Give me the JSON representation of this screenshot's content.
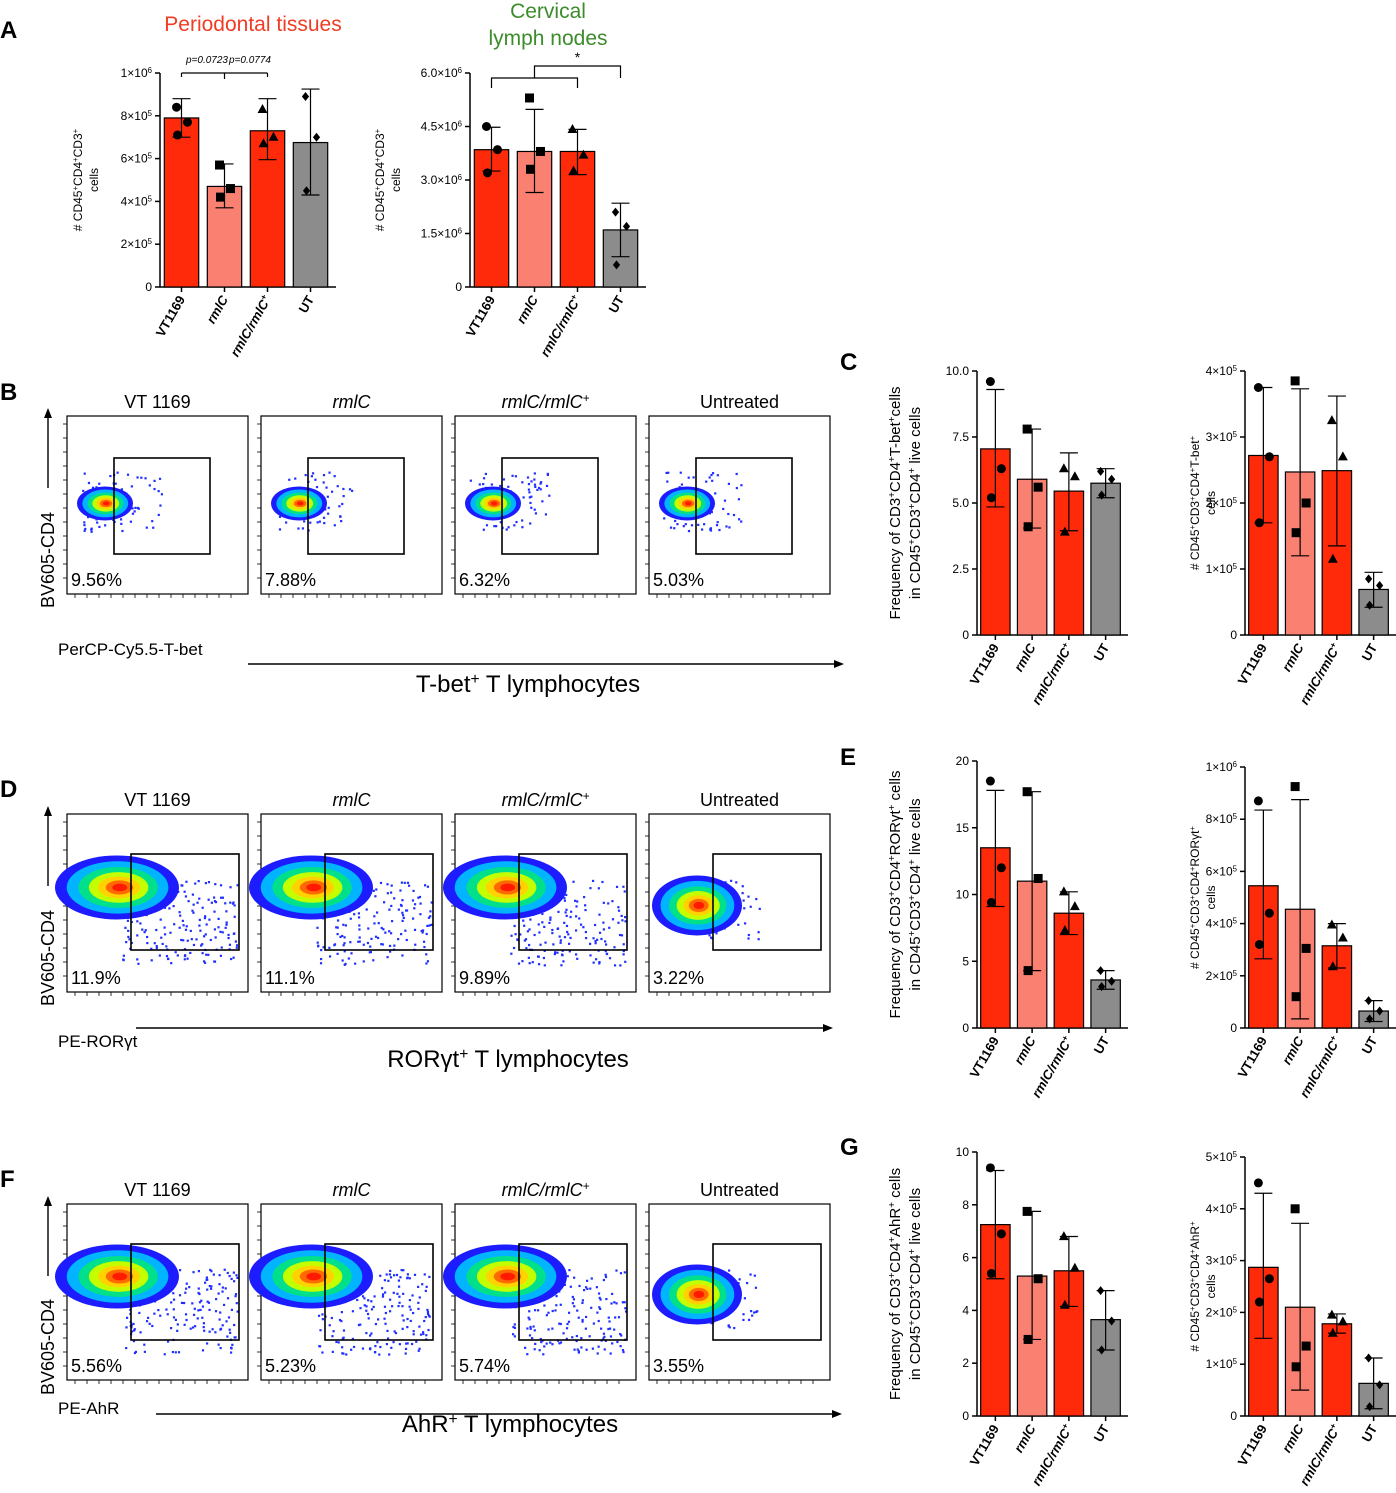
{
  "colors": {
    "red": "#ff2a0a",
    "pink": "#fa8072",
    "gray": "#8c8c8c",
    "blue": "#1f2fff",
    "title_red": "#f03c24",
    "title_green": "#3c8c2c"
  },
  "flow_groups": [
    "VT 1169",
    "rmlC",
    "rmlC/rmlC",
    "Untreated"
  ],
  "chart_data": [
    {
      "id": "A1",
      "panel": "A",
      "type": "bar",
      "title": "Periodontal tissues",
      "title_color": "#f03c24",
      "ylabel": [
        "# CD45",
        "+",
        "CD4",
        "+",
        "CD3",
        "+"
      ],
      "ylabel2": "cells",
      "ylim": [
        0,
        1000000
      ],
      "ticks": [
        "0",
        "2×10",
        "4×10",
        "6×10",
        "8×10",
        "1×10"
      ],
      "tick_exp": [
        "",
        "5",
        "5",
        "5",
        "5",
        "6"
      ],
      "categories": [
        "VT1169",
        "rmlC",
        "rmlC/rmlC",
        "UT"
      ],
      "values": [
        790000,
        470000,
        730000,
        675000
      ],
      "errors": [
        [
          700000,
          880000
        ],
        [
          370000,
          575000
        ],
        [
          595000,
          880000
        ],
        [
          430000,
          925000
        ]
      ],
      "points": [
        [
          840000,
          770000,
          710000
        ],
        [
          570000,
          460000,
          420000
        ],
        [
          830000,
          700000,
          670000
        ],
        [
          890000,
          700000,
          450000
        ]
      ],
      "annotations": [
        "p=0.0723",
        "p=0.0774"
      ]
    },
    {
      "id": "A2",
      "panel": "A",
      "type": "bar",
      "title": "Cervical lymph nodes",
      "title_color": "#3c8c2c",
      "ylabel": [
        "# CD45",
        "+",
        "CD4",
        "+",
        "CD3",
        "+"
      ],
      "ylabel2": "cells",
      "ylim": [
        0,
        6000000
      ],
      "ticks": [
        "0",
        "1.5×10",
        "3.0×10",
        "4.5×10",
        "6.0×10"
      ],
      "tick_exp": [
        "",
        "6",
        "6",
        "6",
        "6"
      ],
      "categories": [
        "VT1169",
        "rmlC",
        "rmlC/rmlC",
        "UT"
      ],
      "values": [
        3850000,
        3800000,
        3800000,
        1600000
      ],
      "errors": [
        [
          3250000,
          4480000
        ],
        [
          2650000,
          4980000
        ],
        [
          3150000,
          4420000
        ],
        [
          850000,
          2350000
        ]
      ],
      "points": [
        [
          4500000,
          3850000,
          3200000
        ],
        [
          5300000,
          3800000,
          3300000
        ],
        [
          4420000,
          3700000,
          3250000
        ],
        [
          2100000,
          1700000,
          620000
        ]
      ],
      "annotations": [
        "*"
      ]
    },
    {
      "id": "C1",
      "panel": "C",
      "type": "bar",
      "ylabel": [
        "Frequency of CD3",
        "+",
        "CD4",
        "+",
        "T-bet",
        "+",
        "cells"
      ],
      "ylabel2": [
        "in CD45",
        "+",
        "CD3",
        "+",
        "CD4",
        "+",
        " live cells"
      ],
      "ylim": [
        0,
        10
      ],
      "ticks": [
        "0",
        "2.5",
        "5.0",
        "7.5",
        "10.0"
      ],
      "categories": [
        "VT1169",
        "rmlC",
        "rmlC/rmlC",
        "UT"
      ],
      "values": [
        7.05,
        5.9,
        5.45,
        5.75
      ],
      "errors": [
        [
          4.85,
          9.3
        ],
        [
          4.05,
          7.8
        ],
        [
          3.95,
          6.9
        ],
        [
          5.2,
          6.3
        ]
      ],
      "points": [
        [
          9.6,
          6.3,
          5.2
        ],
        [
          7.8,
          5.6,
          4.1
        ],
        [
          6.3,
          6.0,
          3.9
        ],
        [
          6.2,
          5.9,
          5.3
        ]
      ]
    },
    {
      "id": "C2",
      "panel": "C",
      "type": "bar",
      "ylabel": [
        "# CD45",
        "+",
        "CD3",
        "+",
        "CD4",
        "+",
        "T-bet",
        "+"
      ],
      "ylabel2": "cells",
      "ylim": [
        0,
        400000
      ],
      "ticks": [
        "0",
        "1×10",
        "2×10",
        "3×10",
        "4×10"
      ],
      "tick_exp": [
        "",
        "5",
        "5",
        "5",
        "5"
      ],
      "categories": [
        "VT1169",
        "rmlC",
        "rmlC/rmlC",
        "UT"
      ],
      "values": [
        272000,
        247000,
        249000,
        69000
      ],
      "errors": [
        [
          170000,
          375000
        ],
        [
          120000,
          373000
        ],
        [
          135000,
          362000
        ],
        [
          42000,
          95000
        ]
      ],
      "points": [
        [
          375000,
          270000,
          170000
        ],
        [
          385000,
          200000,
          155000
        ],
        [
          325000,
          270000,
          115000
        ],
        [
          85000,
          75000,
          45000
        ]
      ]
    },
    {
      "id": "E1",
      "panel": "E",
      "type": "bar",
      "ylabel": [
        "Frequency of CD3",
        "+",
        "CD4",
        "+",
        "RORγt",
        "+",
        " cells"
      ],
      "ylabel2": [
        "in CD45",
        "+",
        "CD3",
        "+",
        "CD4",
        "+",
        " live cells"
      ],
      "ylim": [
        0,
        20
      ],
      "ticks": [
        "0",
        "5",
        "10",
        "15",
        "20"
      ],
      "categories": [
        "VT1169",
        "rmlC",
        "rmlC/rmlC",
        "UT"
      ],
      "values": [
        13.5,
        11.0,
        8.6,
        3.6
      ],
      "errors": [
        [
          9.1,
          17.8
        ],
        [
          4.3,
          17.7
        ],
        [
          7.0,
          10.2
        ],
        [
          2.9,
          4.3
        ]
      ],
      "points": [
        [
          18.5,
          12.0,
          9.4
        ],
        [
          17.7,
          11.2,
          4.3
        ],
        [
          10.2,
          9.1,
          7.3
        ],
        [
          4.3,
          3.5,
          3.1
        ]
      ]
    },
    {
      "id": "E2",
      "panel": "E",
      "type": "bar",
      "ylabel": [
        "# CD45",
        "+",
        "CD3",
        "+",
        "CD4",
        "+",
        "RORγt",
        "+"
      ],
      "ylabel2": "cells",
      "ylim": [
        0,
        1000000
      ],
      "ticks": [
        "0",
        "2×10",
        "4×10",
        "6×10",
        "8×10",
        "1×10"
      ],
      "tick_exp": [
        "",
        "5",
        "5",
        "5",
        "5",
        "6"
      ],
      "categories": [
        "VT1169",
        "rmlC",
        "rmlC/rmlC",
        "UT"
      ],
      "values": [
        545000,
        455000,
        315000,
        65000
      ],
      "errors": [
        [
          265000,
          835000
        ],
        [
          35000,
          875000
        ],
        [
          230000,
          400000
        ],
        [
          25000,
          105000
        ]
      ],
      "points": [
        [
          870000,
          440000,
          320000
        ],
        [
          925000,
          305000,
          120000
        ],
        [
          395000,
          345000,
          235000
        ],
        [
          105000,
          65000,
          35000
        ]
      ]
    },
    {
      "id": "G1",
      "panel": "G",
      "type": "bar",
      "ylabel": [
        "Frequency of CD3",
        "+",
        "CD4",
        "+",
        "AhR",
        "+",
        " cells"
      ],
      "ylabel2": [
        "in CD45",
        "+",
        "CD3",
        "+",
        "CD4",
        "+",
        " live cells"
      ],
      "ylim": [
        0,
        10
      ],
      "ticks": [
        "0",
        "2",
        "4",
        "6",
        "8",
        "10"
      ],
      "categories": [
        "VT1169",
        "rmlC",
        "rmlC/rmlC",
        "UT"
      ],
      "values": [
        7.25,
        5.3,
        5.5,
        3.65
      ],
      "errors": [
        [
          5.2,
          9.3
        ],
        [
          2.9,
          7.75
        ],
        [
          4.15,
          6.8
        ],
        [
          2.5,
          4.75
        ]
      ],
      "points": [
        [
          9.4,
          6.9,
          5.4
        ],
        [
          7.75,
          5.2,
          2.9
        ],
        [
          6.8,
          5.6,
          4.2
        ],
        [
          4.75,
          3.6,
          2.5
        ]
      ]
    },
    {
      "id": "G2",
      "panel": "G",
      "type": "bar",
      "ylabel": [
        "# CD45",
        "+",
        "CD3",
        "+",
        "CD4",
        "+",
        "AhR",
        "+"
      ],
      "ylabel2": "cells",
      "ylim": [
        0,
        500000
      ],
      "ticks": [
        "0",
        "1×10",
        "2×10",
        "3×10",
        "4×10",
        "5×10"
      ],
      "tick_exp": [
        "",
        "5",
        "5",
        "5",
        "5",
        "5"
      ],
      "categories": [
        "VT1169",
        "rmlC",
        "rmlC/rmlC",
        "UT"
      ],
      "values": [
        287000,
        210000,
        178000,
        63000
      ],
      "errors": [
        [
          150000,
          430000
        ],
        [
          50000,
          372000
        ],
        [
          160000,
          197000
        ],
        [
          14000,
          112000
        ]
      ],
      "points": [
        [
          450000,
          265000,
          220000
        ],
        [
          400000,
          135000,
          95000
        ],
        [
          195000,
          182000,
          160000
        ],
        [
          112000,
          60000,
          18000
        ]
      ]
    },
    {
      "id": "B",
      "panel": "B",
      "type": "scatter",
      "subtype": "flow-density",
      "ylabel": "BV605-CD4",
      "xlabel": "PerCP-Cy5.5-T-bet",
      "caption": "T-bet",
      "caption_sup": "+",
      "caption_rest": " T lymphocytes",
      "groups": [
        "VT 1169",
        "rmlC",
        "rmlC/rmlC",
        "Untreated"
      ],
      "percentages": [
        "9.56%",
        "7.88%",
        "6.32%",
        "5.03%"
      ]
    },
    {
      "id": "D",
      "panel": "D",
      "type": "scatter",
      "subtype": "flow-density",
      "ylabel": "BV605-CD4",
      "xlabel": "PE-RORγt",
      "caption": "RORγt",
      "caption_sup": "+",
      "caption_rest": " T lymphocytes",
      "groups": [
        "VT 1169",
        "rmlC",
        "rmlC/rmlC",
        "Untreated"
      ],
      "percentages": [
        "11.9%",
        "11.1%",
        "9.89%",
        "3.22%"
      ]
    },
    {
      "id": "F",
      "panel": "F",
      "type": "scatter",
      "subtype": "flow-density",
      "ylabel": "BV605-CD4",
      "xlabel": "PE-AhR",
      "caption": "AhR",
      "caption_sup": "+",
      "caption_rest": " T lymphocytes",
      "groups": [
        "VT 1169",
        "rmlC",
        "rmlC/rmlC",
        "Untreated"
      ],
      "percentages": [
        "5.56%",
        "5.23%",
        "5.74%",
        "3.55%"
      ]
    }
  ],
  "panel_letters": [
    "A",
    "B",
    "C",
    "D",
    "E",
    "F",
    "G"
  ]
}
